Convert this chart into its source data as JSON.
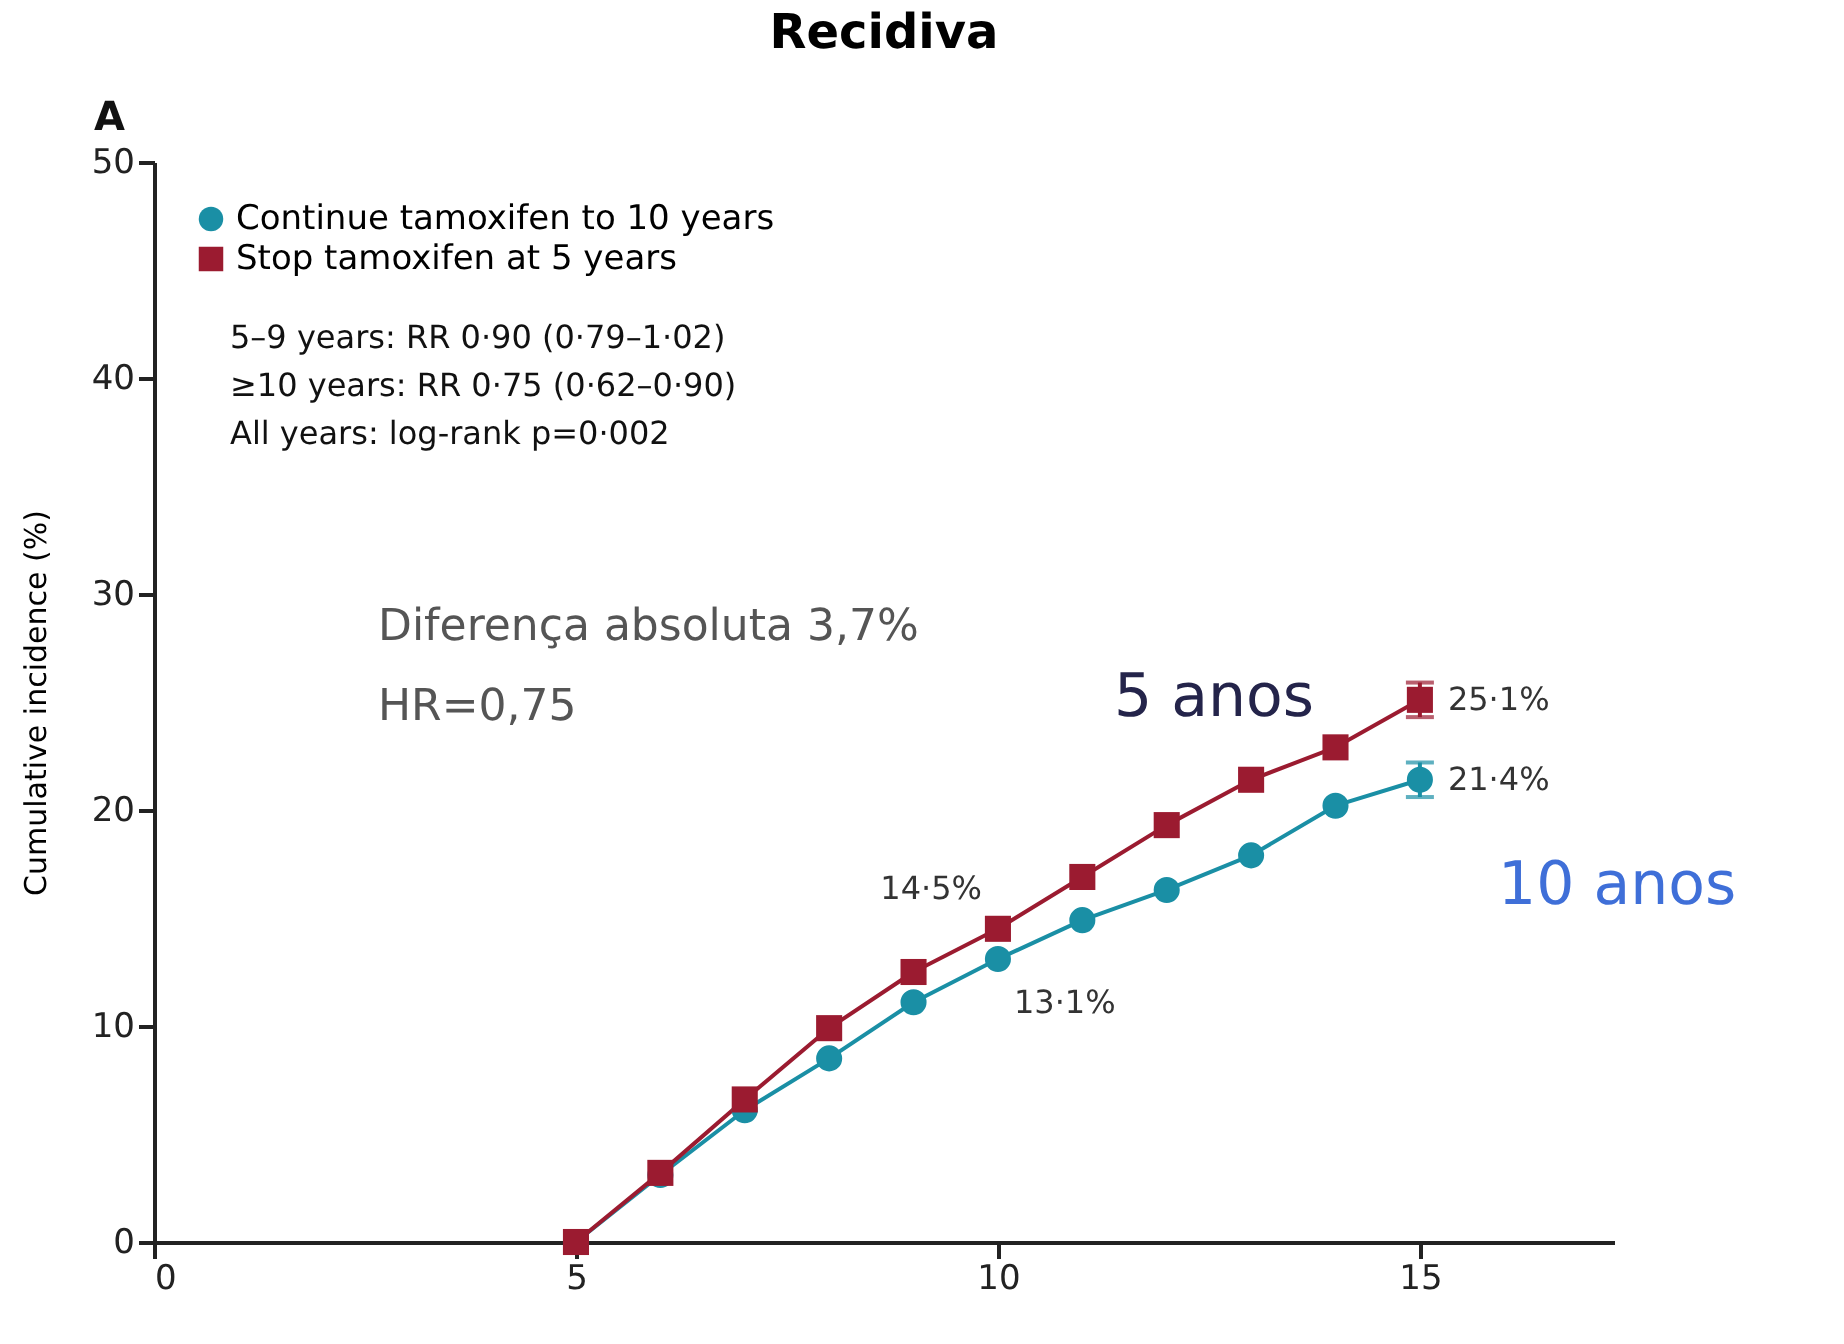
{
  "chart_data": {
    "type": "line",
    "title": "Recidiva",
    "ylabel": "Cumulative incidence (%)",
    "x": [
      5,
      6,
      7,
      8,
      9,
      10,
      11,
      12,
      13,
      14,
      15
    ],
    "series": [
      {
        "name": "Continue tamoxifen to 10 years",
        "color": "#1a8fa5",
        "marker": "circle",
        "values": [
          0,
          3.1,
          6.1,
          8.5,
          11.1,
          13.1,
          14.9,
          16.3,
          17.9,
          20.2,
          21.4
        ],
        "errors": [
          null,
          null,
          null,
          null,
          null,
          null,
          null,
          null,
          null,
          null,
          0.8
        ],
        "value_labels": [
          null,
          null,
          null,
          null,
          null,
          "13·1%",
          null,
          null,
          null,
          null,
          "21·4%"
        ]
      },
      {
        "name": "Stop tamoxifen at 5 years",
        "color": "#9b1b30",
        "marker": "square",
        "values": [
          0,
          3.2,
          6.6,
          9.9,
          12.5,
          14.5,
          16.9,
          19.3,
          21.4,
          22.9,
          25.1
        ],
        "errors": [
          null,
          null,
          null,
          null,
          null,
          null,
          null,
          null,
          null,
          null,
          0.8
        ],
        "value_labels": [
          null,
          null,
          null,
          null,
          null,
          "14·5%",
          null,
          null,
          null,
          null,
          "25·1%"
        ]
      }
    ],
    "xlim": [
      0,
      17.3
    ],
    "xticks": [
      0,
      5,
      10,
      15
    ],
    "ylim": [
      0,
      50
    ],
    "yticks": [
      0,
      10,
      20,
      30,
      40,
      50
    ],
    "legend": "top left",
    "grid": false,
    "line_style": "solid",
    "annotations": [
      "A",
      "5–9 years: RR 0·90 (0·79–1·02)",
      "≥10 years: RR 0·75 (0·62–0·90)",
      "All years: log-rank p=0·002",
      "Diferença absoluta 3,7%",
      "HR=0,75",
      "5 anos",
      "10 anos"
    ]
  }
}
